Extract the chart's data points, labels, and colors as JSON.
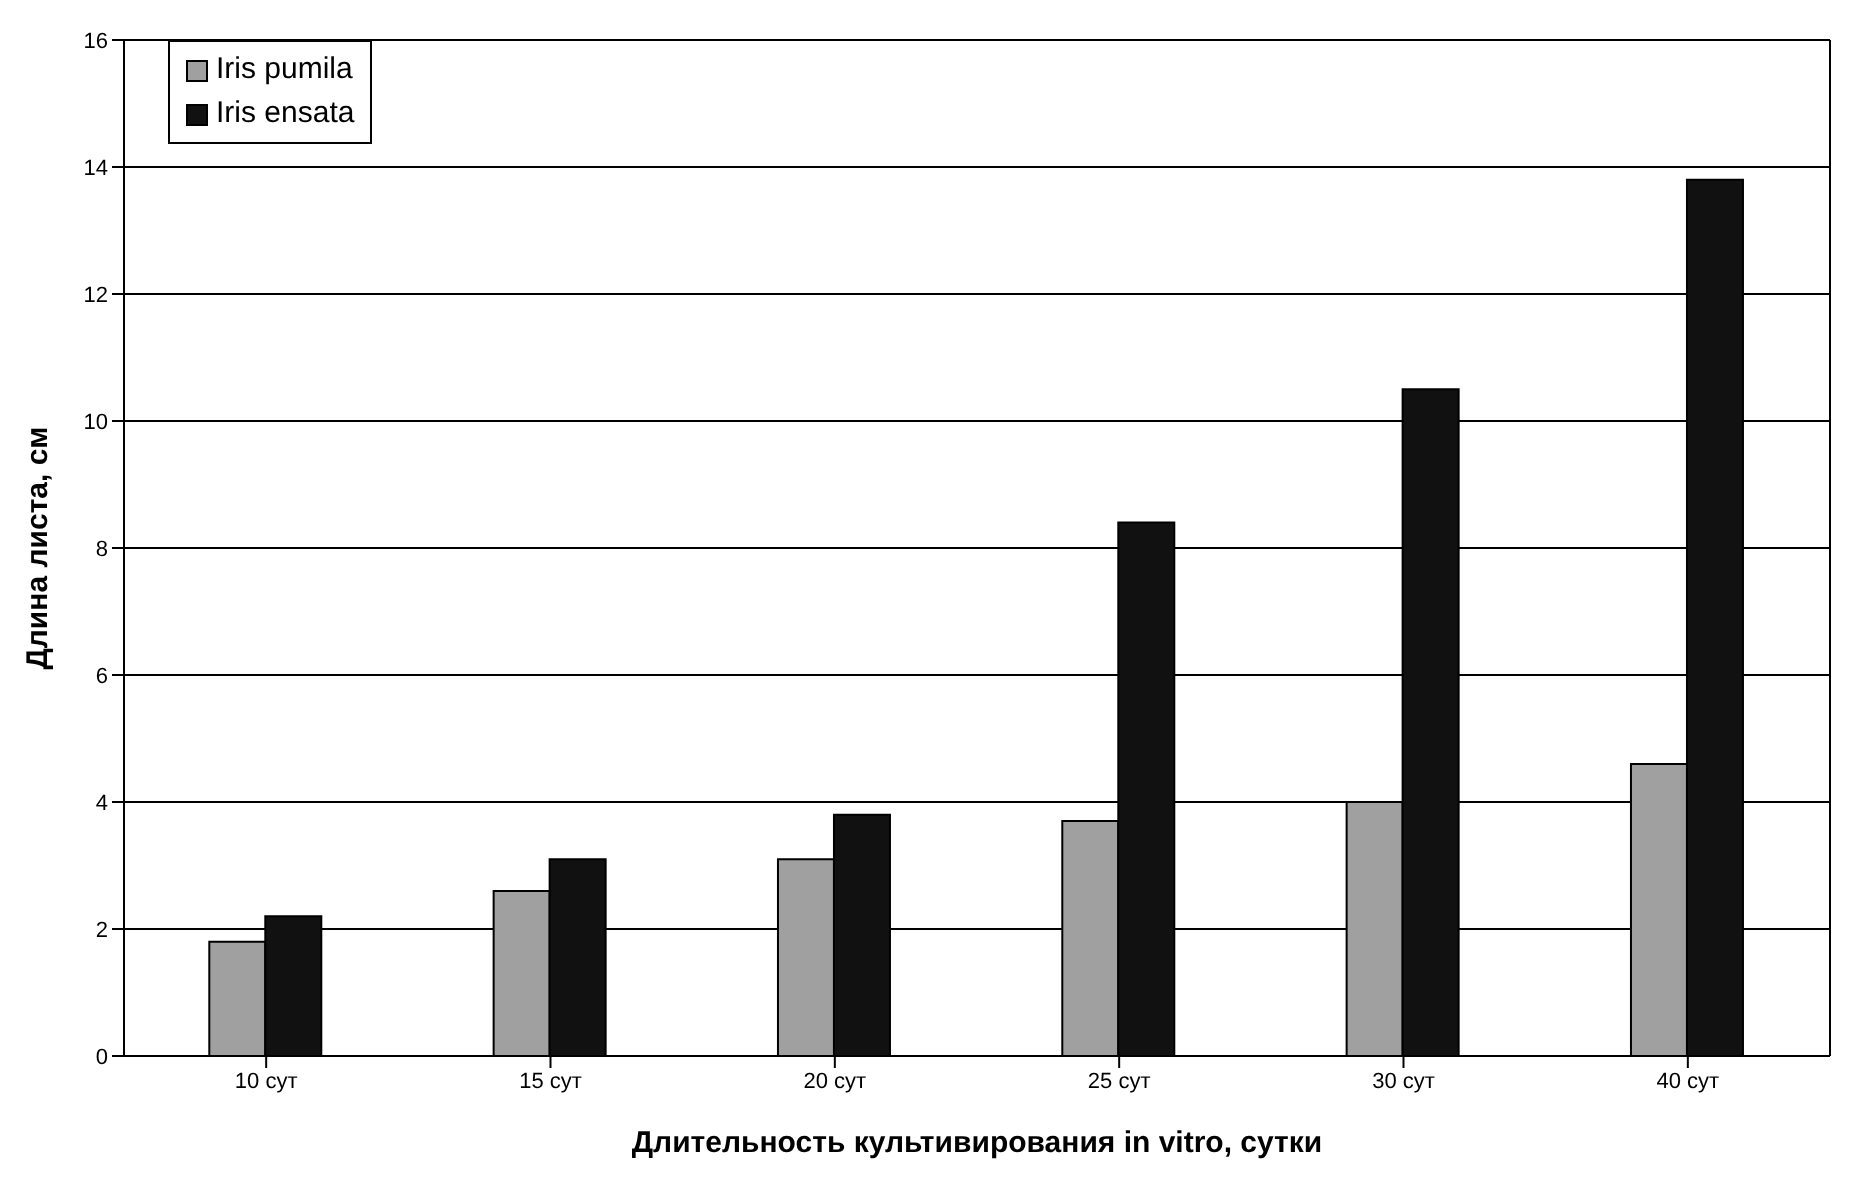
{
  "chart_data": {
    "type": "bar",
    "xlabel": "Длительность культивирования in vitro, сутки",
    "ylabel": "Длина листа, см",
    "categories": [
      "10 сут",
      "15 сут",
      "20 сут",
      "25 сут",
      "30 сут",
      "40 сут"
    ],
    "series": [
      {
        "name": "Iris pumila",
        "color": "#a0a0a0",
        "values": [
          1.8,
          2.6,
          3.1,
          3.7,
          4.0,
          4.6
        ]
      },
      {
        "name": "Iris ensata",
        "color": "#111111",
        "values": [
          2.2,
          3.1,
          3.8,
          8.4,
          10.5,
          13.8
        ]
      }
    ],
    "ylim": [
      0,
      16
    ],
    "yticks": [
      0,
      2,
      4,
      6,
      8,
      10,
      12,
      14,
      16
    ],
    "grid": "y",
    "legend": "top left"
  }
}
